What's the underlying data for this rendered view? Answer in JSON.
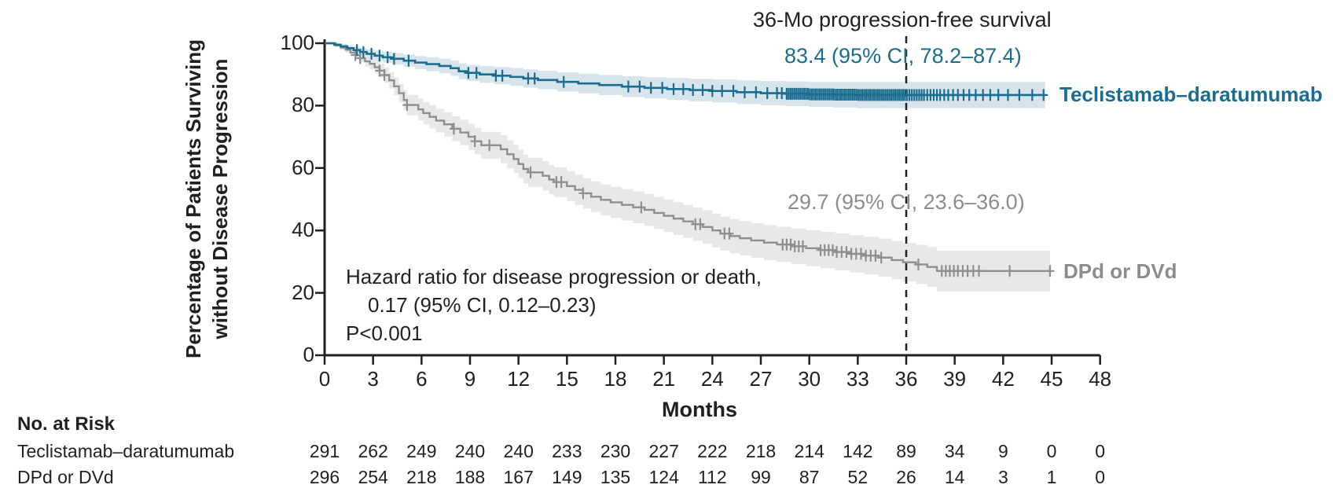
{
  "figure": {
    "annotation_title": "36-Mo progression-free survival",
    "xlabel": "Months",
    "ylabel_line1": "Percentage of Patients Surviving",
    "ylabel_line2": "without Disease Progression",
    "hazard_line1": "Hazard ratio for disease progression or death,",
    "hazard_line2": "0.17 (95% CI, 0.12–0.23)",
    "hazard_line3": "P<0.001",
    "colors": {
      "teclistamab_line": "#1A6D8E",
      "teclistamab_band": "#D7E4EC",
      "dpd_line": "#8F8F91",
      "dpd_text": "#8A8C8E",
      "dpd_band": "#E8E8E9",
      "axis": "#231F20"
    }
  },
  "chart_data": {
    "type": "line",
    "subtype": "kaplan-meier-step",
    "title": "36-Mo progression-free survival",
    "xlabel": "Months",
    "ylabel": "Percentage of Patients Surviving without Disease Progression",
    "xlim": [
      0,
      48
    ],
    "ylim": [
      0,
      100
    ],
    "xticks": [
      0,
      3,
      6,
      9,
      12,
      15,
      18,
      21,
      24,
      27,
      30,
      33,
      36,
      39,
      42,
      45,
      48
    ],
    "yticks": [
      0,
      20,
      40,
      60,
      80,
      100
    ],
    "grid": false,
    "reference_line_x": 36,
    "series": [
      {
        "name": "Teclistamab–daratumumab",
        "ci_text_36mo": "83.4 (95% CI, 78.2–87.4)",
        "survival_36mo": 83.4,
        "steps": [
          [
            0,
            100
          ],
          [
            0.6,
            99.5
          ],
          [
            1.0,
            99.0
          ],
          [
            1.4,
            98.4
          ],
          [
            1.8,
            97.8
          ],
          [
            2.2,
            97.2
          ],
          [
            2.6,
            96.6
          ],
          [
            3.1,
            96.0
          ],
          [
            3.6,
            95.5
          ],
          [
            4.2,
            95.0
          ],
          [
            4.9,
            94.4
          ],
          [
            5.6,
            93.8
          ],
          [
            6.3,
            93.3
          ],
          [
            7.1,
            92.7
          ],
          [
            7.8,
            92.0
          ],
          [
            8.3,
            91.0
          ],
          [
            8.8,
            90.5
          ],
          [
            9.6,
            90.0
          ],
          [
            10.5,
            89.6
          ],
          [
            11.5,
            89.2
          ],
          [
            12.3,
            88.7
          ],
          [
            13.2,
            88.2
          ],
          [
            14.4,
            87.6
          ],
          [
            15.7,
            87.1
          ],
          [
            17.0,
            86.6
          ],
          [
            18.4,
            86.1
          ],
          [
            19.8,
            85.7
          ],
          [
            21.2,
            85.3
          ],
          [
            22.6,
            85.0
          ],
          [
            24.0,
            84.7
          ],
          [
            25.5,
            84.3
          ],
          [
            27.0,
            84.0
          ],
          [
            28.5,
            83.8
          ],
          [
            30.0,
            83.6
          ],
          [
            31.5,
            83.5
          ],
          [
            33.0,
            83.4
          ],
          [
            44.6,
            83.4
          ]
        ],
        "band_halfwidth": [
          [
            0,
            0.4
          ],
          [
            3,
            1.6
          ],
          [
            6,
            2.2
          ],
          [
            9,
            2.6
          ],
          [
            12,
            2.9
          ],
          [
            15,
            3.1
          ],
          [
            18,
            3.3
          ],
          [
            21,
            3.5
          ],
          [
            24,
            3.7
          ],
          [
            27,
            3.9
          ],
          [
            30,
            4.0
          ],
          [
            33,
            4.2
          ],
          [
            36,
            4.6
          ],
          [
            44.6,
            4.6
          ]
        ],
        "censor_months": [
          2.0,
          2.4,
          2.9,
          3.4,
          3.9,
          4.3,
          5.2,
          8.9,
          9.4,
          10.6,
          11.0,
          12.6,
          13.0,
          14.8,
          18.8,
          19.5,
          20.2,
          20.9,
          21.6,
          22.2,
          22.8,
          23.4,
          24.0,
          24.6,
          25.3,
          26.0,
          26.7,
          27.4,
          28.0,
          28.3,
          28.6,
          28.72,
          28.84,
          28.96,
          29.08,
          29.2,
          29.32,
          29.44,
          29.56,
          29.68,
          29.8,
          29.92,
          30.04,
          30.16,
          30.28,
          30.4,
          30.52,
          30.64,
          30.76,
          30.88,
          31.0,
          31.12,
          31.24,
          31.36,
          31.48,
          31.6,
          31.72,
          31.84,
          31.96,
          32.08,
          32.2,
          32.32,
          32.44,
          32.56,
          32.68,
          32.8,
          32.92,
          33.04,
          33.16,
          33.28,
          33.4,
          33.52,
          33.64,
          33.76,
          33.88,
          34.0,
          34.12,
          34.24,
          34.36,
          34.48,
          34.6,
          34.72,
          34.84,
          34.96,
          35.08,
          35.2,
          35.32,
          35.44,
          35.56,
          35.68,
          35.8,
          35.92,
          36.05,
          36.2,
          36.35,
          36.5,
          36.65,
          36.8,
          36.95,
          37.1,
          37.3,
          37.5,
          37.7,
          37.9,
          38.1,
          38.35,
          38.6,
          38.9,
          39.2,
          39.55,
          39.9,
          40.3,
          40.75,
          41.2,
          41.7,
          42.3,
          43.0,
          43.8,
          44.5
        ]
      },
      {
        "name": "DPd or DVd",
        "ci_text_36mo": "29.7 (95% CI, 23.6–36.0)",
        "survival_36mo": 29.7,
        "steps": [
          [
            0,
            100
          ],
          [
            0.7,
            99.3
          ],
          [
            1.0,
            98.6
          ],
          [
            1.3,
            97.9
          ],
          [
            1.6,
            97.0
          ],
          [
            1.9,
            96.2
          ],
          [
            2.2,
            95.2
          ],
          [
            2.5,
            94.2
          ],
          [
            2.8,
            93.4
          ],
          [
            3.1,
            92.3
          ],
          [
            3.4,
            91.2
          ],
          [
            3.7,
            89.8
          ],
          [
            4.0,
            88.1
          ],
          [
            4.3,
            86.2
          ],
          [
            4.6,
            84.0
          ],
          [
            4.9,
            81.8
          ],
          [
            5.1,
            80.2
          ],
          [
            5.8,
            78.8
          ],
          [
            6.1,
            77.6
          ],
          [
            6.5,
            76.4
          ],
          [
            6.9,
            75.2
          ],
          [
            7.4,
            74.0
          ],
          [
            7.9,
            72.6
          ],
          [
            8.4,
            71.4
          ],
          [
            8.9,
            70.0
          ],
          [
            9.3,
            68.6
          ],
          [
            9.7,
            67.3
          ],
          [
            10.9,
            66.0
          ],
          [
            11.3,
            64.4
          ],
          [
            11.7,
            62.9
          ],
          [
            12.0,
            61.3
          ],
          [
            12.3,
            59.7
          ],
          [
            12.6,
            58.6
          ],
          [
            13.5,
            57.5
          ],
          [
            13.9,
            56.3
          ],
          [
            14.2,
            55.5
          ],
          [
            15.0,
            54.2
          ],
          [
            15.5,
            53.0
          ],
          [
            16.0,
            51.9
          ],
          [
            16.5,
            50.8
          ],
          [
            17.1,
            49.8
          ],
          [
            17.7,
            49.0
          ],
          [
            18.4,
            48.2
          ],
          [
            19.1,
            47.4
          ],
          [
            19.8,
            46.6
          ],
          [
            20.4,
            45.6
          ],
          [
            21.0,
            44.7
          ],
          [
            21.6,
            43.8
          ],
          [
            22.2,
            42.9
          ],
          [
            22.8,
            42.0
          ],
          [
            23.4,
            41.1
          ],
          [
            24.0,
            40.0
          ],
          [
            24.5,
            39.0
          ],
          [
            25.1,
            38.2
          ],
          [
            25.7,
            37.5
          ],
          [
            26.4,
            36.8
          ],
          [
            27.2,
            36.1
          ],
          [
            28.0,
            35.5
          ],
          [
            28.9,
            34.9
          ],
          [
            29.8,
            34.3
          ],
          [
            30.7,
            33.7
          ],
          [
            31.6,
            33.1
          ],
          [
            32.5,
            32.5
          ],
          [
            33.4,
            31.9
          ],
          [
            34.3,
            31.3
          ],
          [
            35.1,
            30.5
          ],
          [
            35.8,
            29.8
          ],
          [
            36.6,
            29.1
          ],
          [
            37.3,
            28.3
          ],
          [
            37.9,
            27.0
          ],
          [
            44.9,
            27.0
          ]
        ],
        "band_halfwidth": [
          [
            0,
            0.4
          ],
          [
            2,
            1.2
          ],
          [
            3,
            2.0
          ],
          [
            4,
            2.6
          ],
          [
            5,
            3.2
          ],
          [
            6,
            3.6
          ],
          [
            9,
            4.2
          ],
          [
            12,
            4.6
          ],
          [
            15,
            4.8
          ],
          [
            18,
            5.0
          ],
          [
            21,
            5.2
          ],
          [
            24,
            5.4
          ],
          [
            27,
            5.6
          ],
          [
            30,
            5.8
          ],
          [
            33,
            6.0
          ],
          [
            36,
            6.2
          ],
          [
            38,
            6.5
          ],
          [
            44.9,
            6.5
          ]
        ],
        "censor_months": [
          1.9,
          2.2,
          3.4,
          3.7,
          5.1,
          8.0,
          9.3,
          10.2,
          12.75,
          14.35,
          14.65,
          16.0,
          19.6,
          22.95,
          23.25,
          24.75,
          25.05,
          28.35,
          28.6,
          28.85,
          29.1,
          29.35,
          29.6,
          30.7,
          30.95,
          31.2,
          31.45,
          31.7,
          32.0,
          32.3,
          32.6,
          32.9,
          33.2,
          33.5,
          33.8,
          34.1,
          34.45,
          36.75,
          38.2,
          38.45,
          38.7,
          38.95,
          39.2,
          39.5,
          39.8,
          40.15,
          40.5,
          42.4,
          44.9
        ]
      }
    ],
    "annotations": {
      "hazard_ratio": "Hazard ratio for disease progression or death, 0.17 (95% CI, 0.12–0.23)",
      "p_value": "P<0.001",
      "dashed_line_at_month": 36
    },
    "risk_table": {
      "title": "No. at Risk",
      "months": [
        0,
        3,
        6,
        9,
        12,
        15,
        18,
        21,
        24,
        27,
        30,
        33,
        36,
        39,
        42,
        45,
        48
      ],
      "rows": [
        {
          "label": "Teclistamab–daratumumab",
          "counts": [
            291,
            262,
            249,
            240,
            240,
            233,
            230,
            227,
            222,
            218,
            214,
            142,
            89,
            34,
            9,
            0,
            0
          ]
        },
        {
          "label": "DPd or DVd",
          "counts": [
            296,
            254,
            218,
            188,
            167,
            149,
            135,
            124,
            112,
            99,
            87,
            52,
            26,
            14,
            3,
            1,
            0
          ]
        }
      ]
    }
  }
}
